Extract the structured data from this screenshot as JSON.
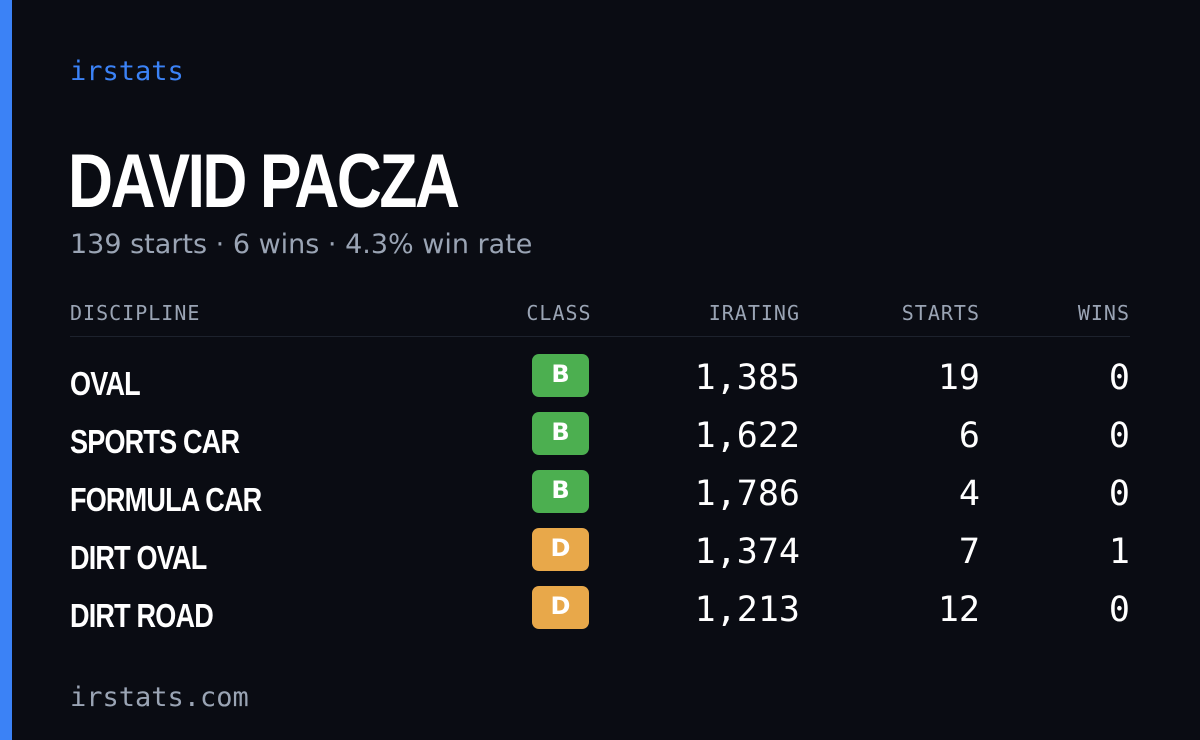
{
  "brand": "irstats",
  "driver": {
    "name": "DAVID PACZA",
    "summary": "139 starts · 6 wins · 4.3% win rate"
  },
  "table": {
    "headers": {
      "discipline": "DISCIPLINE",
      "class": "CLASS",
      "irating": "IRATING",
      "starts": "STARTS",
      "wins": "WINS"
    },
    "rows": [
      {
        "discipline": "OVAL",
        "class": "B",
        "class_color": "#4caf50",
        "irating": "1,385",
        "starts": "19",
        "wins": "0"
      },
      {
        "discipline": "SPORTS CAR",
        "class": "B",
        "class_color": "#4caf50",
        "irating": "1,622",
        "starts": "6",
        "wins": "0"
      },
      {
        "discipline": "FORMULA CAR",
        "class": "B",
        "class_color": "#4caf50",
        "irating": "1,786",
        "starts": "4",
        "wins": "0"
      },
      {
        "discipline": "DIRT OVAL",
        "class": "D",
        "class_color": "#e8a84a",
        "irating": "1,374",
        "starts": "7",
        "wins": "1"
      },
      {
        "discipline": "DIRT ROAD",
        "class": "D",
        "class_color": "#e8a84a",
        "irating": "1,213",
        "starts": "12",
        "wins": "0"
      }
    ]
  },
  "footer": {
    "url": "irstats.com"
  },
  "colors": {
    "background": "#0a0c13",
    "accent": "#3b82f6",
    "muted_text": "#9aa4b4",
    "class_b": "#4caf50",
    "class_d": "#e8a84a"
  }
}
